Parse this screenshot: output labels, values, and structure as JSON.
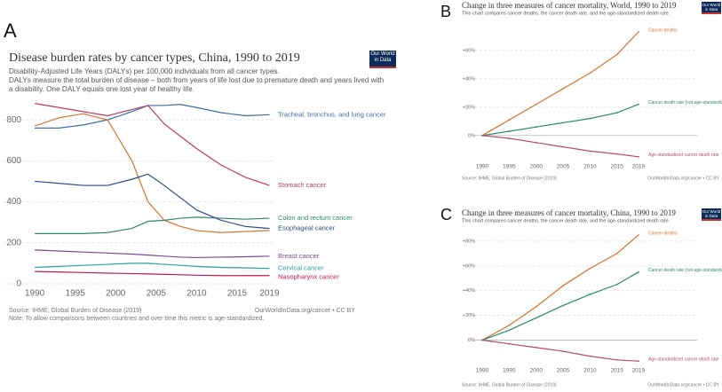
{
  "chart_data": [
    {
      "type": "line",
      "panel": "A",
      "title": "Disease burden rates by cancer types, China, 1990 to 2019",
      "subtitle": [
        "Disability-Adjusted Life Years (DALYs) per 100,000 individuals from all cancer types.",
        "DALYs measure the total burden of disease – both from years of life lost due to premature death and years lived with",
        "a disability. One DALY equals one lost year of healthy life."
      ],
      "logo": "Our World in Data",
      "x": [
        1990,
        1993,
        1996,
        1999,
        2002,
        2004,
        2006,
        2008,
        2010,
        2013,
        2016,
        2019
      ],
      "xlim": [
        1989,
        2019.5
      ],
      "xticks": [
        1990,
        1995,
        2000,
        2005,
        2010,
        2015,
        2019
      ],
      "ylim": [
        0,
        900
      ],
      "yticks": [
        0,
        200,
        400,
        600,
        800
      ],
      "grid": true,
      "series": [
        {
          "name": "Tracheal, bronchus, and lung cancer",
          "color": "#3b6fa8",
          "values": [
            760,
            760,
            775,
            800,
            840,
            870,
            870,
            875,
            860,
            835,
            820,
            825
          ]
        },
        {
          "name": "Stomach cancer",
          "color": "#c0395e",
          "values": [
            880,
            860,
            840,
            820,
            850,
            870,
            780,
            720,
            660,
            580,
            520,
            480
          ]
        },
        {
          "color": "#d8712c",
          "values": [
            770,
            810,
            830,
            800,
            600,
            400,
            310,
            280,
            260,
            250,
            255,
            260
          ]
        },
        {
          "name": "Colon and rectum cancer",
          "color": "#2a8a6f",
          "values": [
            245,
            245,
            245,
            250,
            270,
            305,
            310,
            320,
            325,
            320,
            315,
            320
          ]
        },
        {
          "name": "Esophageal cancer",
          "color": "#2d4b86",
          "values": [
            500,
            490,
            480,
            480,
            510,
            535,
            480,
            420,
            360,
            310,
            280,
            270
          ]
        },
        {
          "name": "Breast cancer",
          "color": "#7a4a9a",
          "values": [
            165,
            160,
            155,
            150,
            145,
            140,
            135,
            130,
            128,
            130,
            132,
            135
          ]
        },
        {
          "name": "Cervical cancer",
          "color": "#2aa0a8",
          "values": [
            80,
            85,
            90,
            95,
            100,
            100,
            95,
            90,
            85,
            80,
            78,
            75
          ]
        },
        {
          "name": "Nasopharynx cancer",
          "color": "#c2185b",
          "values": [
            60,
            58,
            55,
            52,
            50,
            48,
            46,
            44,
            42,
            40,
            40,
            40
          ]
        }
      ],
      "source": "Source: IHME, Global Burden of Disease (2019)",
      "url": "OurWorldInData.org/cancer • CC BY",
      "note": "Note: To allow comparisons between countries and over time this metric is age-standardized."
    },
    {
      "type": "line",
      "panel": "B",
      "title": "Change in three measures of cancer mortality, World, 1990 to 2019",
      "subtitle": [
        "This chart compares cancer deaths, the cancer death rate, and the age-standardized death rate."
      ],
      "logo": "Our World in Data",
      "x": [
        1990,
        1995,
        2000,
        2005,
        2010,
        2015,
        2019
      ],
      "xlim": [
        1989,
        2020
      ],
      "xticks": [
        1990,
        1995,
        2000,
        2005,
        2010,
        2015,
        2019
      ],
      "ylim": [
        -17,
        78
      ],
      "yticks": [
        {
          "value": 0,
          "label": "0%"
        },
        {
          "value": 20,
          "label": "+20%"
        },
        {
          "value": 40,
          "label": "+40%"
        },
        {
          "value": 60,
          "label": "+60%"
        }
      ],
      "grid": true,
      "series": [
        {
          "name": "Cancer deaths",
          "color": "#d8712c",
          "values": [
            0,
            11,
            22,
            33,
            44,
            57,
            73
          ]
        },
        {
          "name": "Cancer death rate (not age-standardized)",
          "color": "#2a8a6f",
          "values": [
            0,
            3,
            6,
            9,
            12,
            16,
            22
          ]
        },
        {
          "name": "Age-standardized cancer death rate",
          "color": "#b84a6a",
          "values": [
            0,
            -2,
            -5,
            -8,
            -11,
            -13,
            -15
          ]
        }
      ],
      "source": "Source: IHME, Global Burden of Disease (2019)",
      "url": "OurWorldInData.org/cancer • CC BY"
    },
    {
      "type": "line",
      "panel": "C",
      "title": "Change in three measures of cancer mortality, China, 1990 to 2019",
      "subtitle": [
        "This chart compares cancer deaths, the cancer death rate, and the age-standardized death rate."
      ],
      "logo": "Our World in Data",
      "x": [
        1990,
        1995,
        2000,
        2005,
        2010,
        2015,
        2019
      ],
      "xlim": [
        1989,
        2020
      ],
      "xticks": [
        1990,
        1995,
        2000,
        2005,
        2010,
        2015,
        2019
      ],
      "ylim": [
        -19,
        90
      ],
      "yticks": [
        {
          "value": 0,
          "label": "0%"
        },
        {
          "value": 20,
          "label": "+20%"
        },
        {
          "value": 40,
          "label": "+40%"
        },
        {
          "value": 60,
          "label": "+60%"
        },
        {
          "value": 80,
          "label": "+80%"
        }
      ],
      "grid": true,
      "series": [
        {
          "name": "Cancer deaths",
          "color": "#d8712c",
          "values": [
            0,
            12,
            27,
            44,
            58,
            70,
            85
          ]
        },
        {
          "name": "Cancer death rate (not age-standardized)",
          "color": "#2a8a6f",
          "values": [
            0,
            8,
            18,
            28,
            37,
            45,
            55
          ]
        },
        {
          "name": "Age-standardized cancer death rate",
          "color": "#b84a6a",
          "values": [
            0,
            -3,
            -6,
            -9,
            -13,
            -16,
            -17
          ]
        }
      ],
      "source": "Source: IHME, Global Burden of Disease (2019)",
      "url": "OurWorldInData.org/cancer • CC BY"
    }
  ]
}
